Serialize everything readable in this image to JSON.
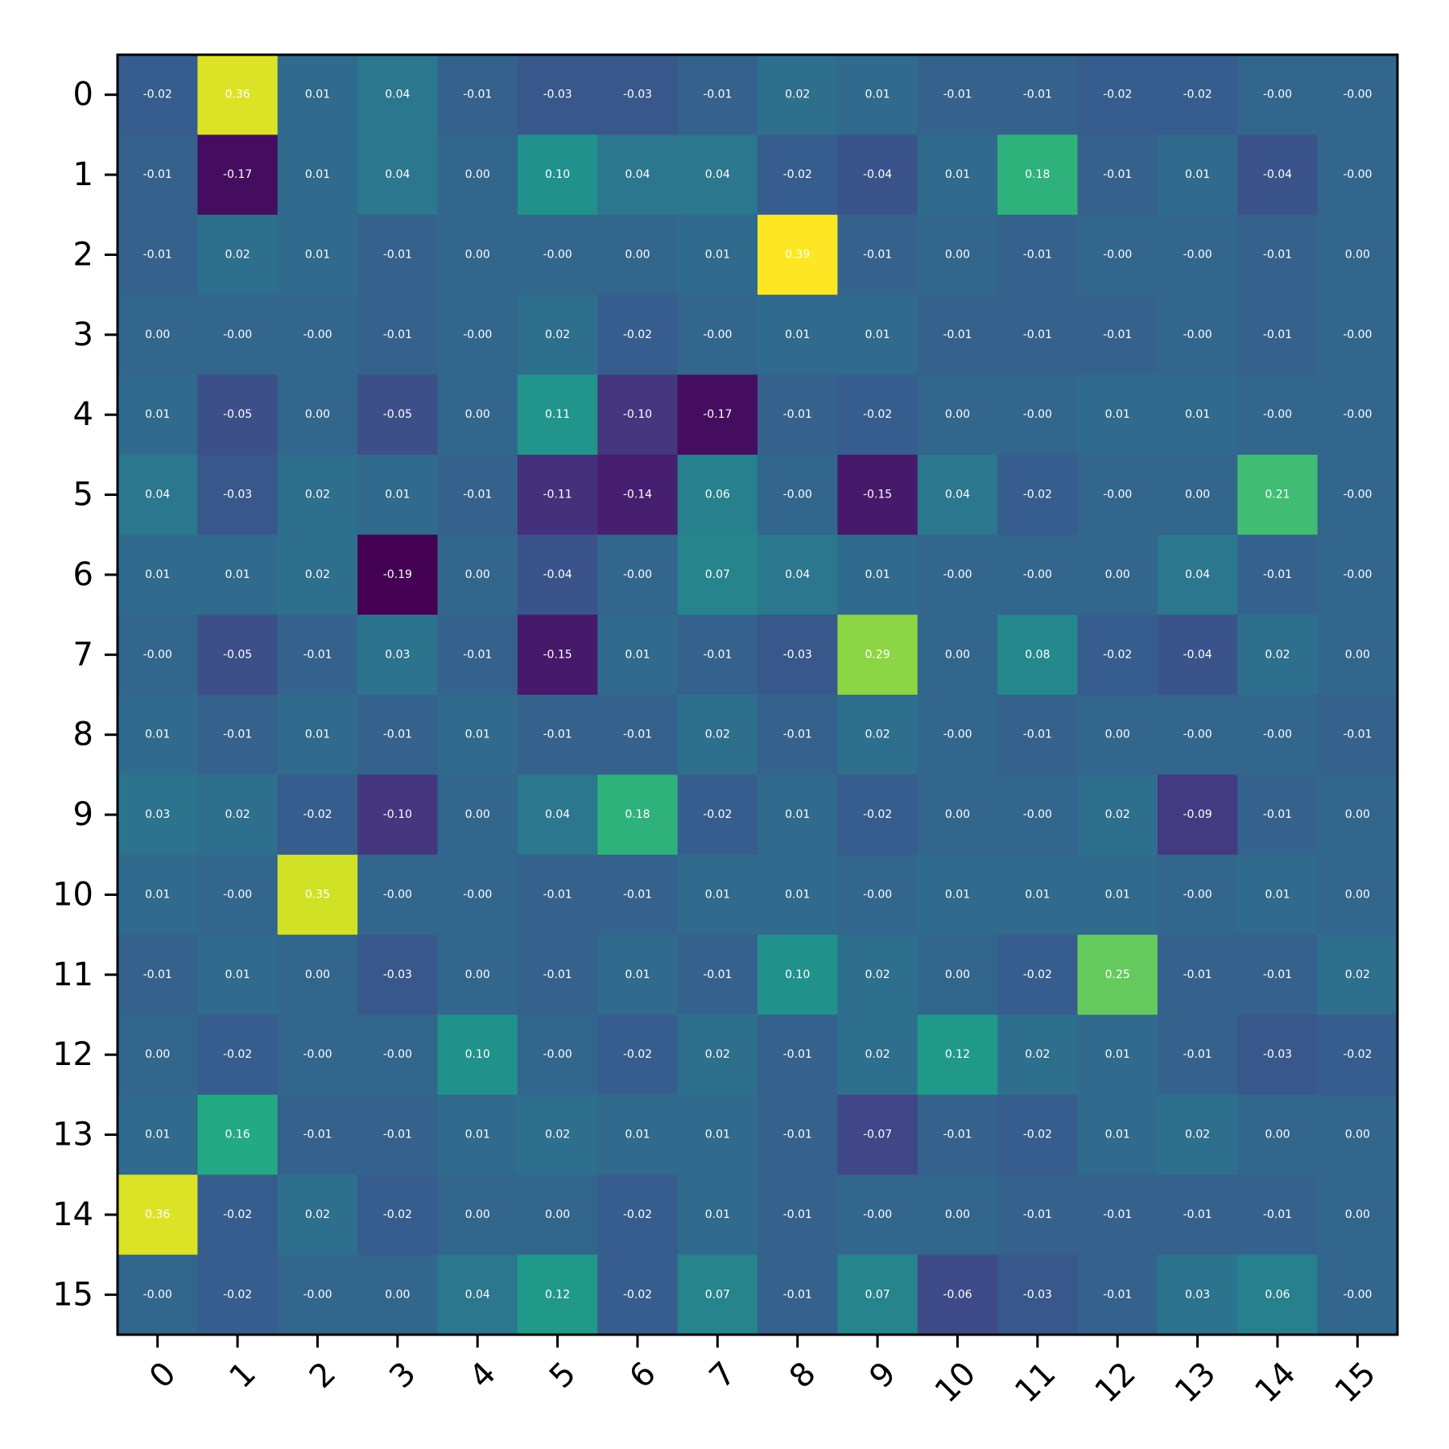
{
  "chart_data": {
    "type": "heatmap",
    "title": "",
    "xlabel": "",
    "ylabel": "",
    "x_ticks": [
      "0",
      "1",
      "2",
      "3",
      "4",
      "5",
      "6",
      "7",
      "8",
      "9",
      "10",
      "11",
      "12",
      "13",
      "14",
      "15"
    ],
    "y_ticks": [
      "0",
      "1",
      "2",
      "3",
      "4",
      "5",
      "6",
      "7",
      "8",
      "9",
      "10",
      "11",
      "12",
      "13",
      "14",
      "15"
    ],
    "colormap": "viridis",
    "vmin": -0.19,
    "vmax": 0.39,
    "cell_labels": [
      [
        "-0.02",
        "0.36",
        "0.01",
        "0.04",
        "-0.01",
        "-0.03",
        "-0.03",
        "-0.01",
        "0.02",
        "0.01",
        "-0.01",
        "-0.01",
        "-0.02",
        "-0.02",
        "-0.00",
        "-0.00"
      ],
      [
        "-0.01",
        "-0.17",
        "0.01",
        "0.04",
        "0.00",
        "0.10",
        "0.04",
        "0.04",
        "-0.02",
        "-0.04",
        "0.01",
        "0.18",
        "-0.01",
        "0.01",
        "-0.04",
        "-0.00"
      ],
      [
        "-0.01",
        "0.02",
        "0.01",
        "-0.01",
        "0.00",
        "-0.00",
        "0.00",
        "0.01",
        "0.39",
        "-0.01",
        "0.00",
        "-0.01",
        "-0.00",
        "-0.00",
        "-0.01",
        "0.00"
      ],
      [
        "0.00",
        "-0.00",
        "-0.00",
        "-0.01",
        "-0.00",
        "0.02",
        "-0.02",
        "-0.00",
        "0.01",
        "0.01",
        "-0.01",
        "-0.01",
        "-0.01",
        "-0.00",
        "-0.01",
        "-0.00"
      ],
      [
        "0.01",
        "-0.05",
        "0.00",
        "-0.05",
        "0.00",
        "0.11",
        "-0.10",
        "-0.17",
        "-0.01",
        "-0.02",
        "0.00",
        "-0.00",
        "0.01",
        "0.01",
        "-0.00",
        "-0.00"
      ],
      [
        "0.04",
        "-0.03",
        "0.02",
        "0.01",
        "-0.01",
        "-0.11",
        "-0.14",
        "0.06",
        "-0.00",
        "-0.15",
        "0.04",
        "-0.02",
        "-0.00",
        "0.00",
        "0.21",
        "-0.00"
      ],
      [
        "0.01",
        "0.01",
        "0.02",
        "-0.19",
        "0.00",
        "-0.04",
        "-0.00",
        "0.07",
        "0.04",
        "0.01",
        "-0.00",
        "-0.00",
        "0.00",
        "0.04",
        "-0.01",
        "-0.00"
      ],
      [
        "-0.00",
        "-0.05",
        "-0.01",
        "0.03",
        "-0.01",
        "-0.15",
        "0.01",
        "-0.01",
        "-0.03",
        "0.29",
        "0.00",
        "0.08",
        "-0.02",
        "-0.04",
        "0.02",
        "0.00"
      ],
      [
        "0.01",
        "-0.01",
        "0.01",
        "-0.01",
        "0.01",
        "-0.01",
        "-0.01",
        "0.02",
        "-0.01",
        "0.02",
        "-0.00",
        "-0.01",
        "0.00",
        "-0.00",
        "-0.00",
        "-0.01"
      ],
      [
        "0.03",
        "0.02",
        "-0.02",
        "-0.10",
        "0.00",
        "0.04",
        "0.18",
        "-0.02",
        "0.01",
        "-0.02",
        "0.00",
        "-0.00",
        "0.02",
        "-0.09",
        "-0.01",
        "0.00"
      ],
      [
        "0.01",
        "-0.00",
        "0.35",
        "-0.00",
        "-0.00",
        "-0.01",
        "-0.01",
        "0.01",
        "0.01",
        "-0.00",
        "0.01",
        "0.01",
        "0.01",
        "-0.00",
        "0.01",
        "0.00"
      ],
      [
        "-0.01",
        "0.01",
        "0.00",
        "-0.03",
        "0.00",
        "-0.01",
        "0.01",
        "-0.01",
        "0.10",
        "0.02",
        "0.00",
        "-0.02",
        "0.25",
        "-0.01",
        "-0.01",
        "0.02"
      ],
      [
        "0.00",
        "-0.02",
        "-0.00",
        "-0.00",
        "0.10",
        "-0.00",
        "-0.02",
        "0.02",
        "-0.01",
        "0.02",
        "0.12",
        "0.02",
        "0.01",
        "-0.01",
        "-0.03",
        "-0.02"
      ],
      [
        "0.01",
        "0.16",
        "-0.01",
        "-0.01",
        "0.01",
        "0.02",
        "0.01",
        "0.01",
        "-0.01",
        "-0.07",
        "-0.01",
        "-0.02",
        "0.01",
        "0.02",
        "0.00",
        "0.00"
      ],
      [
        "0.36",
        "-0.02",
        "0.02",
        "-0.02",
        "0.00",
        "0.00",
        "-0.02",
        "0.01",
        "-0.01",
        "-0.00",
        "0.00",
        "-0.01",
        "-0.01",
        "-0.01",
        "-0.01",
        "0.00"
      ],
      [
        "-0.00",
        "-0.02",
        "-0.00",
        "0.00",
        "0.04",
        "0.12",
        "-0.02",
        "0.07",
        "-0.01",
        "0.07",
        "-0.06",
        "-0.03",
        "-0.01",
        "0.03",
        "0.06",
        "-0.00"
      ]
    ],
    "grid": false,
    "legend": "none",
    "colorbar": false
  }
}
